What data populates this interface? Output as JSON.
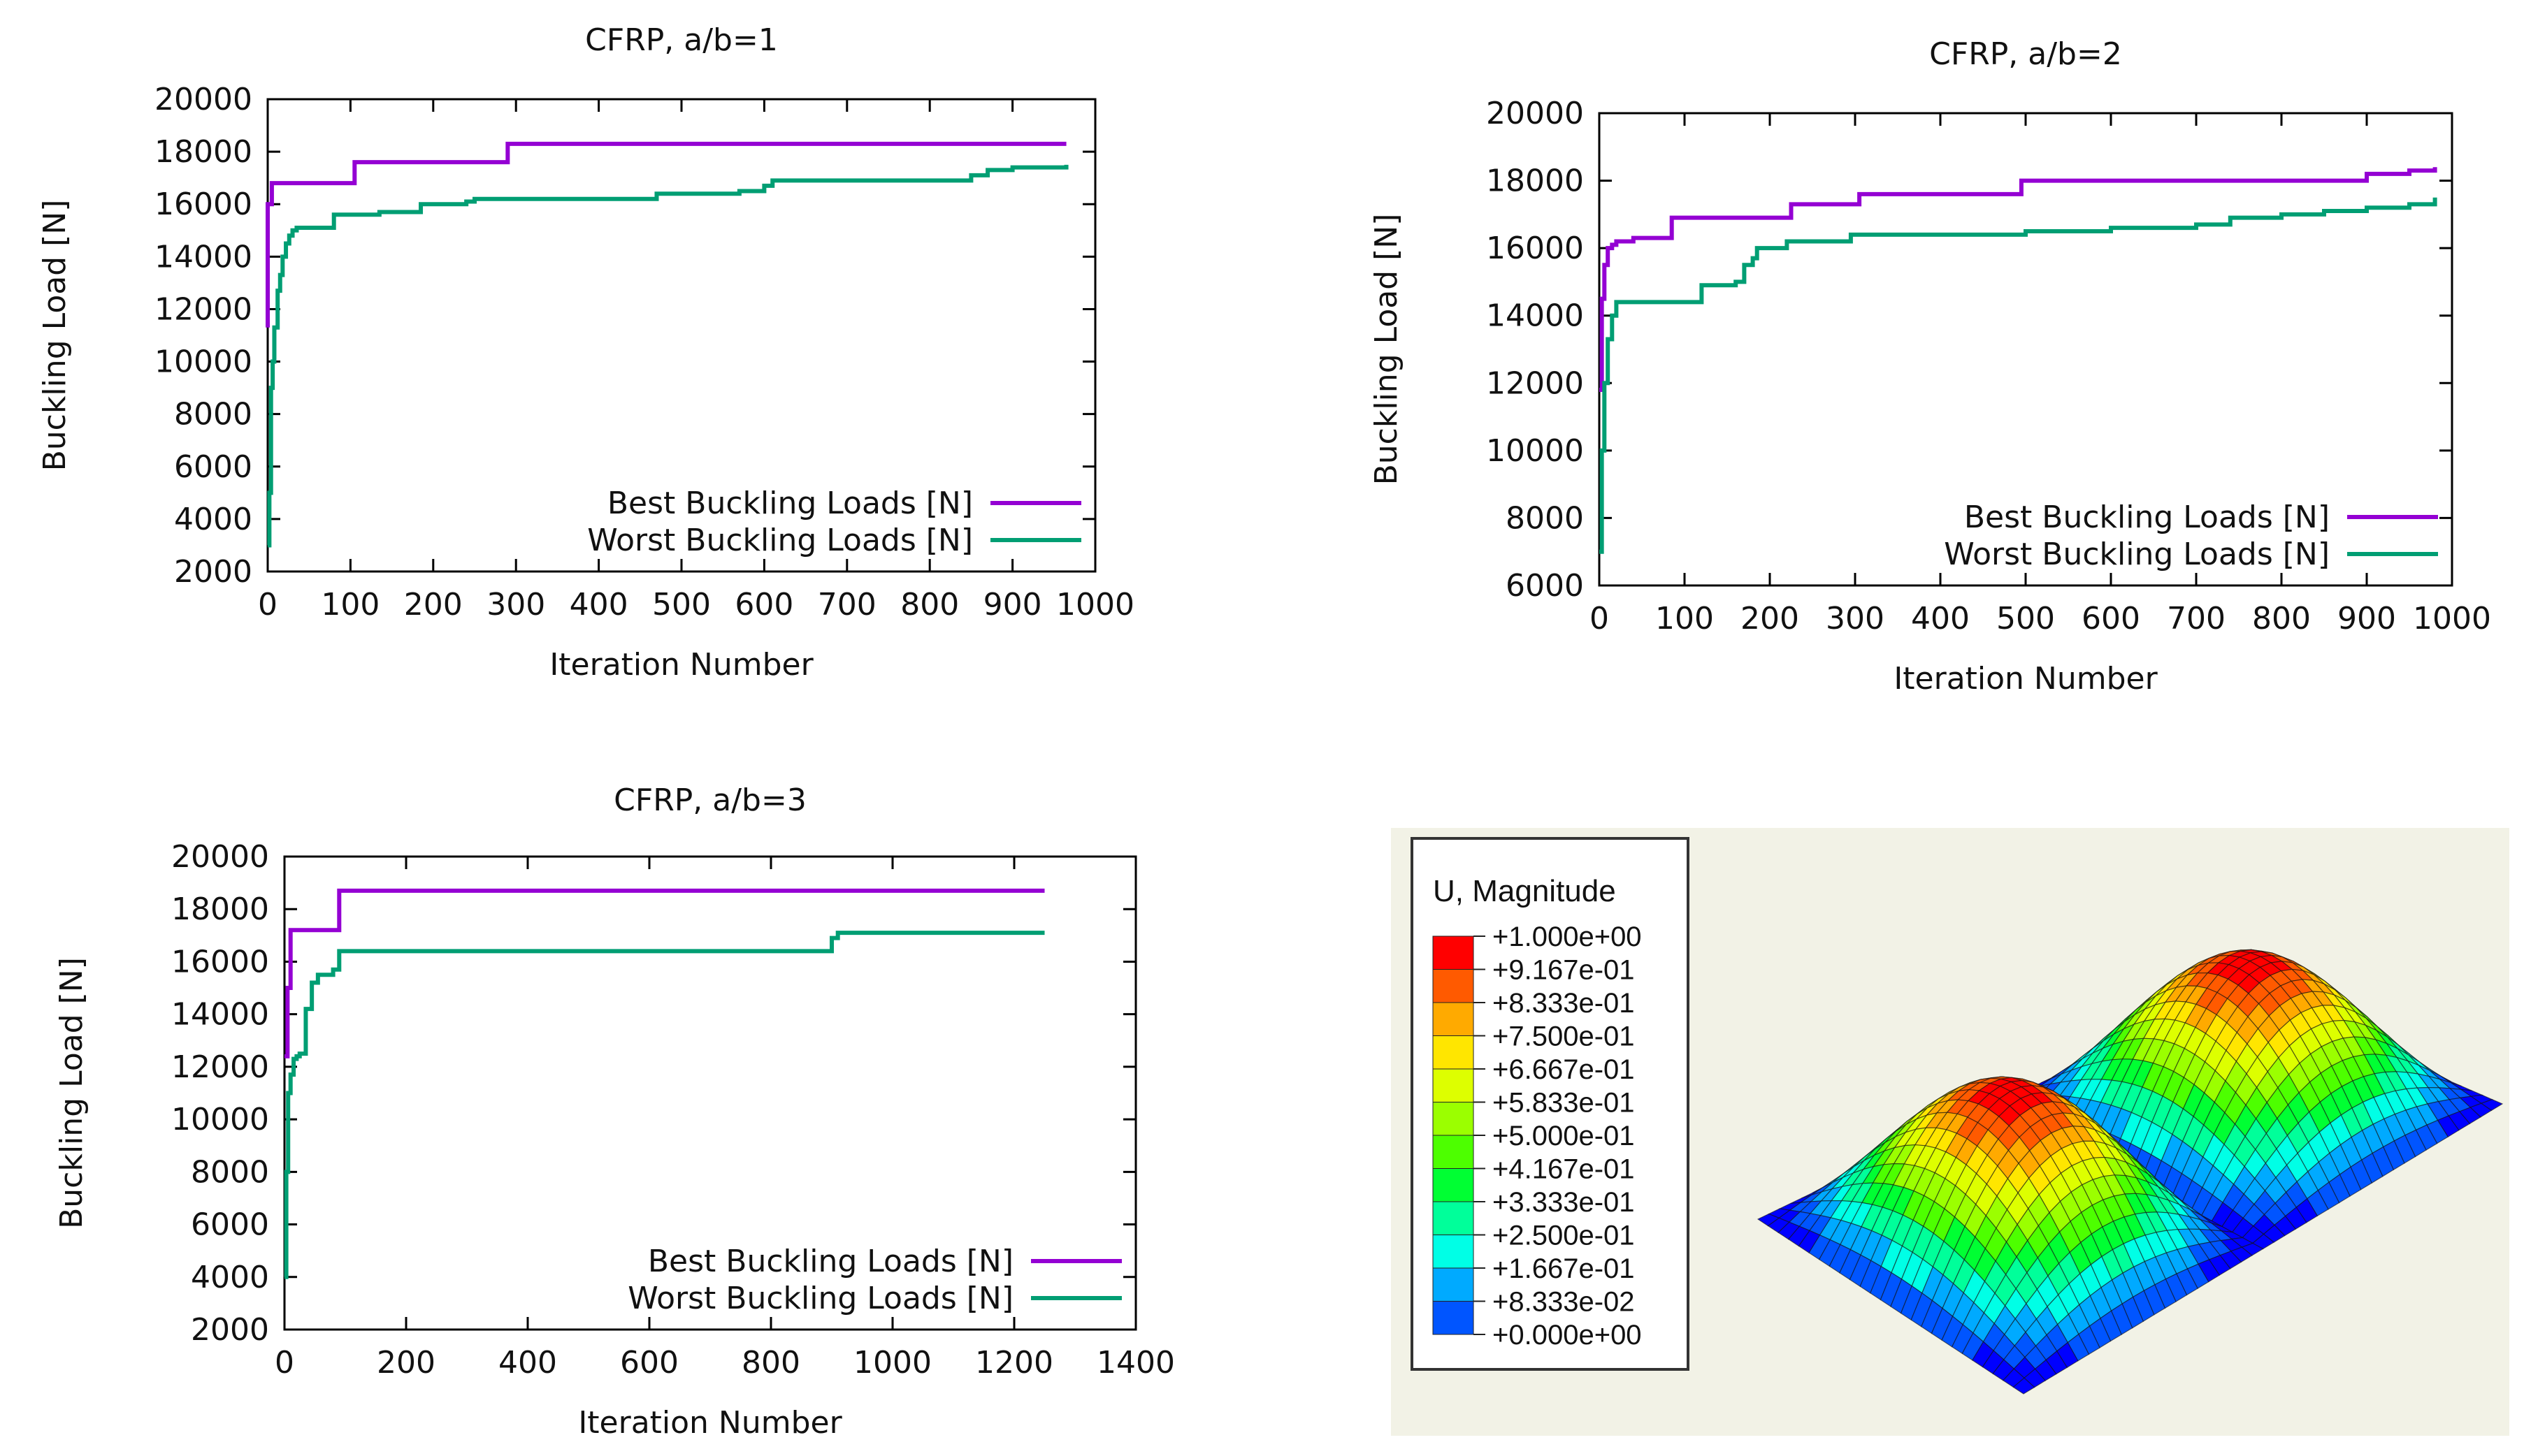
{
  "chart_data": [
    {
      "type": "line",
      "title": "CFRP, a/b=1",
      "xlabel": "Iteration Number",
      "ylabel": "Buckling Load [N]",
      "xlim": [
        0,
        1000
      ],
      "ylim": [
        2000,
        20000
      ],
      "xticks": [
        0,
        100,
        200,
        300,
        400,
        500,
        600,
        700,
        800,
        900,
        1000
      ],
      "yticks": [
        2000,
        4000,
        6000,
        8000,
        10000,
        12000,
        14000,
        16000,
        18000,
        20000
      ],
      "legend_position": "bottom-right",
      "series": [
        {
          "name": "Best Buckling Loads [N]",
          "color": "#9400d3",
          "x": [
            0,
            0,
            5,
            5,
            15,
            15,
            100,
            105,
            105,
            285,
            290,
            290,
            965
          ],
          "y": [
            11300,
            16000,
            16000,
            16800,
            16800,
            16800,
            16800,
            16800,
            17600,
            17600,
            17600,
            18300,
            18300
          ]
        },
        {
          "name": "Worst Buckling Loads [N]",
          "color": "#009e73",
          "x": [
            0,
            2,
            4,
            6,
            8,
            10,
            12,
            15,
            18,
            22,
            26,
            30,
            35,
            75,
            80,
            130,
            135,
            180,
            185,
            240,
            250,
            460,
            470,
            570,
            600,
            610,
            820,
            850,
            870,
            900,
            965
          ],
          "y": [
            3000,
            5000,
            9000,
            10000,
            11300,
            11300,
            12700,
            13300,
            14000,
            14500,
            14800,
            15000,
            15100,
            15100,
            15600,
            15600,
            15700,
            15700,
            16000,
            16100,
            16200,
            16200,
            16400,
            16500,
            16700,
            16900,
            16900,
            17100,
            17300,
            17400,
            17500
          ]
        }
      ]
    },
    {
      "type": "line",
      "title": "CFRP, a/b=2",
      "xlabel": "Iteration Number",
      "ylabel": "Buckling Load [N]",
      "xlim": [
        0,
        1000
      ],
      "ylim": [
        6000,
        20000
      ],
      "xticks": [
        0,
        100,
        200,
        300,
        400,
        500,
        600,
        700,
        800,
        900,
        1000
      ],
      "yticks": [
        6000,
        8000,
        10000,
        12000,
        14000,
        16000,
        18000,
        20000
      ],
      "legend_position": "bottom-right",
      "series": [
        {
          "name": "Best Buckling Loads [N]",
          "color": "#9400d3",
          "x": [
            0,
            3,
            6,
            10,
            15,
            20,
            40,
            80,
            85,
            220,
            225,
            300,
            305,
            490,
            495,
            880,
            900,
            950,
            980
          ],
          "y": [
            11800,
            14500,
            15500,
            16000,
            16100,
            16200,
            16300,
            16300,
            16900,
            16900,
            17300,
            17300,
            17600,
            17600,
            18000,
            18000,
            18200,
            18300,
            18400
          ]
        },
        {
          "name": "Worst Buckling Loads [N]",
          "color": "#009e73",
          "x": [
            0,
            3,
            6,
            10,
            15,
            20,
            110,
            120,
            160,
            170,
            180,
            185,
            220,
            290,
            295,
            500,
            600,
            700,
            740,
            800,
            850,
            900,
            950,
            980
          ],
          "y": [
            7000,
            10000,
            12000,
            13300,
            14000,
            14400,
            14400,
            14900,
            15000,
            15500,
            15700,
            16000,
            16200,
            16200,
            16400,
            16500,
            16600,
            16700,
            16900,
            17000,
            17100,
            17200,
            17300,
            17500
          ]
        }
      ]
    },
    {
      "type": "line",
      "title": "CFRP, a/b=3",
      "xlabel": "Iteration Number",
      "ylabel": "Buckling Load [N]",
      "xlim": [
        0,
        1400
      ],
      "ylim": [
        2000,
        20000
      ],
      "xticks": [
        0,
        200,
        400,
        600,
        800,
        1000,
        1200,
        1400
      ],
      "yticks": [
        2000,
        4000,
        6000,
        8000,
        10000,
        12000,
        14000,
        16000,
        18000,
        20000
      ],
      "legend_position": "bottom-right",
      "series": [
        {
          "name": "Best Buckling Loads [N]",
          "color": "#9400d3",
          "x": [
            0,
            5,
            10,
            85,
            90,
            1250
          ],
          "y": [
            12400,
            15000,
            17200,
            17200,
            18700,
            18700
          ]
        },
        {
          "name": "Worst Buckling Loads [N]",
          "color": "#009e73",
          "x": [
            0,
            3,
            6,
            10,
            15,
            20,
            25,
            35,
            45,
            55,
            65,
            80,
            90,
            880,
            900,
            910,
            1250
          ],
          "y": [
            4000,
            8000,
            11000,
            11700,
            12300,
            12400,
            12500,
            14200,
            15200,
            15500,
            15500,
            15700,
            16400,
            16400,
            16900,
            17100,
            17100
          ]
        }
      ]
    }
  ],
  "contour_legend": {
    "title": "U, Magnitude",
    "labels": [
      "+1.000e+00",
      "+9.167e-01",
      "+8.333e-01",
      "+7.500e-01",
      "+6.667e-01",
      "+5.833e-01",
      "+5.000e-01",
      "+4.167e-01",
      "+3.333e-01",
      "+2.500e-01",
      "+1.667e-01",
      "+8.333e-02",
      "+0.000e+00"
    ],
    "colors": [
      "#ff0000",
      "#ff5a00",
      "#ffaa00",
      "#ffe600",
      "#ddff00",
      "#9bff00",
      "#4dff00",
      "#00ff33",
      "#00ff9a",
      "#00ffe6",
      "#00aaff",
      "#0055ff",
      "#0000ff"
    ]
  }
}
